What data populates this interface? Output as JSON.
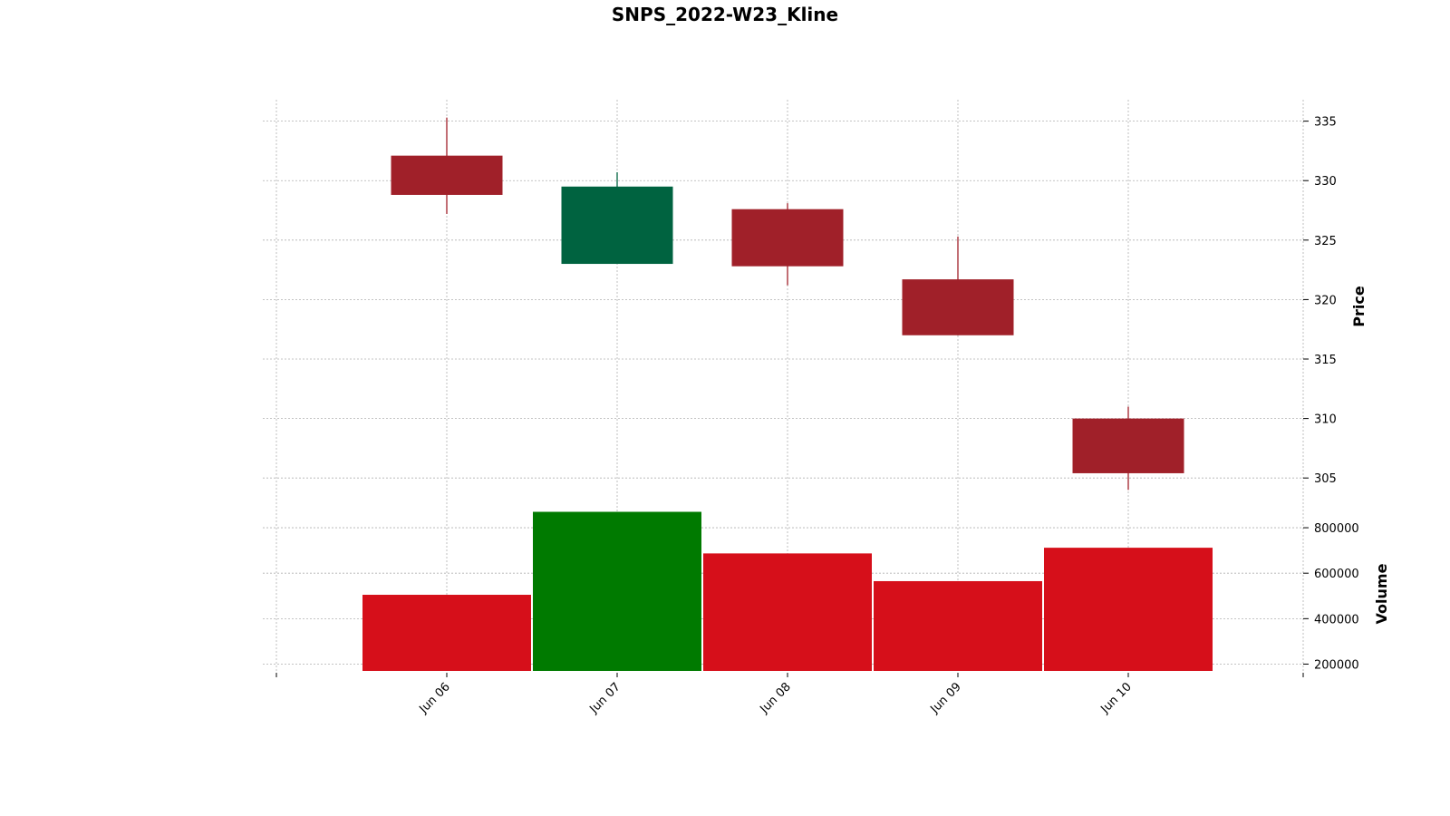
{
  "chart_data": {
    "type": "candlestick",
    "title": "SNPS_2022-W23_Kline",
    "categories": [
      "Jun 06",
      "Jun 07",
      "Jun 08",
      "Jun 09",
      "Jun 10"
    ],
    "ohlc": [
      {
        "open": 332.1,
        "high": 335.3,
        "low": 327.2,
        "close": 328.8
      },
      {
        "open": 323.0,
        "high": 330.7,
        "low": 323.0,
        "close": 329.5
      },
      {
        "open": 327.6,
        "high": 328.1,
        "low": 321.2,
        "close": 322.8
      },
      {
        "open": 321.7,
        "high": 325.3,
        "low": 317.0,
        "close": 317.0
      },
      {
        "open": 310.0,
        "high": 311.0,
        "low": 304.0,
        "close": 305.4
      }
    ],
    "volume": [
      505000,
      870000,
      687000,
      565000,
      712000
    ],
    "price_axis": {
      "label": "Price",
      "ticks": [
        305,
        310,
        315,
        320,
        325,
        330,
        335
      ],
      "range": [
        302.5,
        336.8
      ]
    },
    "volume_axis": {
      "label": "Volume",
      "ticks": [
        200000,
        400000,
        600000,
        800000
      ],
      "range": [
        170000,
        880000
      ]
    },
    "grid": true,
    "colors": {
      "up": "#006340",
      "down": "#a02029",
      "volume_up": "#007a00",
      "volume_down": "#d60f1a",
      "grid": "#b0b0b0"
    }
  }
}
